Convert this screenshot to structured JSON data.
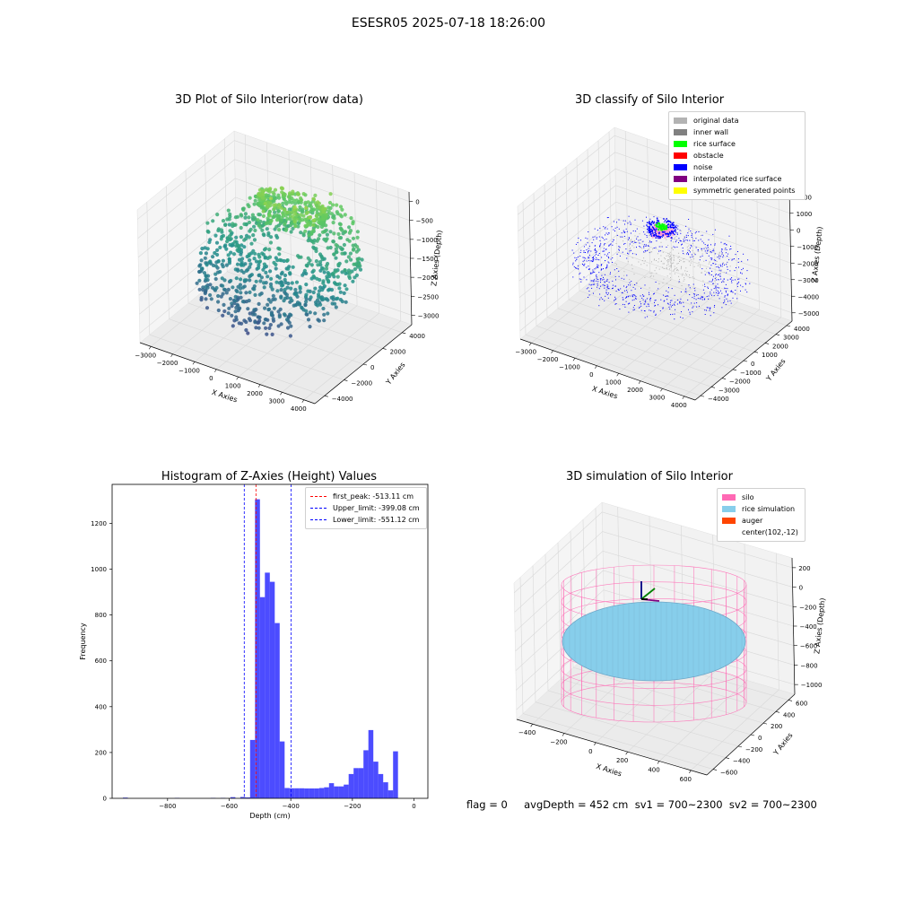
{
  "figure_title": "ESESR05 2025-07-18 18:26:00",
  "panels": {
    "tl": {
      "title": "3D Plot of Silo Interior(row data)",
      "xlabel": "X Axies",
      "ylabel": "Y Axies",
      "zlabel": "Z Axies (Depth)",
      "xticks": [
        "−3000",
        "−2000",
        "−1000",
        "0",
        "1000",
        "2000",
        "3000",
        "4000"
      ],
      "yticks": [
        "4000",
        "2000",
        "0",
        "−2000",
        "−4000"
      ],
      "zticks": [
        "0",
        "−500",
        "−1000",
        "−1500",
        "−2000",
        "−2500",
        "−3000"
      ]
    },
    "tr": {
      "title": "3D classify of Silo Interior",
      "xlabel": "X Axies",
      "ylabel": "Y Axies",
      "zlabel": "Z Axies (Depth)",
      "xticks": [
        "−3000",
        "−2000",
        "−1000",
        "0",
        "1000",
        "2000",
        "3000",
        "4000"
      ],
      "yticks": [
        "4000",
        "3000",
        "2000",
        "1000",
        "0",
        "−1000",
        "−2000",
        "−3000",
        "−4000"
      ],
      "zticks": [
        "2000",
        "1000",
        "0",
        "−1000",
        "−2000",
        "−3000",
        "−4000",
        "−5000"
      ],
      "legend": [
        {
          "label": "original data",
          "color": "#b3b3b3"
        },
        {
          "label": "inner wall",
          "color": "#808080"
        },
        {
          "label": "rice surface",
          "color": "#00ff00"
        },
        {
          "label": "obstacle",
          "color": "#ff0000"
        },
        {
          "label": "noise",
          "color": "#0000ff"
        },
        {
          "label": "interpolated rice surface",
          "color": "#800080"
        },
        {
          "label": "symmetric generated points",
          "color": "#ffff00"
        }
      ]
    },
    "br": {
      "title": "3D simulation of Silo Interior",
      "xlabel": "X Axies",
      "ylabel": "Y Axies",
      "zlabel": "Z Axies (Depth)",
      "xticks": [
        "−400",
        "−200",
        "0",
        "200",
        "400",
        "600"
      ],
      "yticks": [
        "600",
        "400",
        "200",
        "0",
        "−200",
        "−400",
        "−600"
      ],
      "zticks": [
        "200",
        "0",
        "−200",
        "−400",
        "−600",
        "−800",
        "−1000"
      ],
      "legend": [
        {
          "label": "silo",
          "color": "#ff69b4"
        },
        {
          "label": "rice simulation",
          "color": "#87ceeb"
        },
        {
          "label": "auger",
          "color": "#ff4500"
        },
        {
          "label": "center(102,-12)",
          "color": "transparent"
        }
      ]
    }
  },
  "footer": "flag = 0     avgDepth = 452 cm  sv1 = 700~2300  sv2 = 700~2300",
  "chart_data": {
    "type": "bar",
    "title": "Histogram of Z-Axies (Height) Values",
    "xlabel": "Depth (cm)",
    "ylabel": "Frequency",
    "xlim": [
      -980,
      45
    ],
    "ylim": [
      0,
      1370
    ],
    "xticks": [
      -800,
      -600,
      -400,
      -200,
      0
    ],
    "yticks": [
      0,
      200,
      400,
      600,
      800,
      1000,
      1200
    ],
    "bin_width": 16,
    "bins": [
      {
        "x": -945,
        "y": 3
      },
      {
        "x": -777,
        "y": 2
      },
      {
        "x": -660,
        "y": 2
      },
      {
        "x": -628,
        "y": 2
      },
      {
        "x": -596,
        "y": 5
      },
      {
        "x": -564,
        "y": 6
      },
      {
        "x": -548,
        "y": 4
      },
      {
        "x": -532,
        "y": 255
      },
      {
        "x": -516,
        "y": 1305
      },
      {
        "x": -500,
        "y": 878
      },
      {
        "x": -484,
        "y": 985
      },
      {
        "x": -468,
        "y": 945
      },
      {
        "x": -452,
        "y": 765
      },
      {
        "x": -436,
        "y": 248
      },
      {
        "x": -420,
        "y": 45
      },
      {
        "x": -404,
        "y": 44
      },
      {
        "x": -388,
        "y": 44
      },
      {
        "x": -372,
        "y": 44
      },
      {
        "x": -356,
        "y": 43
      },
      {
        "x": -340,
        "y": 43
      },
      {
        "x": -324,
        "y": 43
      },
      {
        "x": -308,
        "y": 45
      },
      {
        "x": -292,
        "y": 48
      },
      {
        "x": -276,
        "y": 66
      },
      {
        "x": -260,
        "y": 52
      },
      {
        "x": -244,
        "y": 52
      },
      {
        "x": -228,
        "y": 60
      },
      {
        "x": -212,
        "y": 106
      },
      {
        "x": -196,
        "y": 132
      },
      {
        "x": -180,
        "y": 132
      },
      {
        "x": -164,
        "y": 210
      },
      {
        "x": -148,
        "y": 298
      },
      {
        "x": -132,
        "y": 160
      },
      {
        "x": -116,
        "y": 106
      },
      {
        "x": -100,
        "y": 70
      },
      {
        "x": -84,
        "y": 35
      },
      {
        "x": -68,
        "y": 205
      }
    ],
    "bar_color": "#0000ff",
    "bar_alpha": 0.7,
    "vlines": [
      {
        "label": "first_peak: -513.11 cm",
        "x": -513.11,
        "color": "#ff0000"
      },
      {
        "label": "Upper_limit: -399.08 cm",
        "x": -399.08,
        "color": "#0000ff"
      },
      {
        "label": "Lower_limit: -551.12 cm",
        "x": -551.12,
        "color": "#0000ff"
      }
    ],
    "legend_position": "top-right"
  }
}
